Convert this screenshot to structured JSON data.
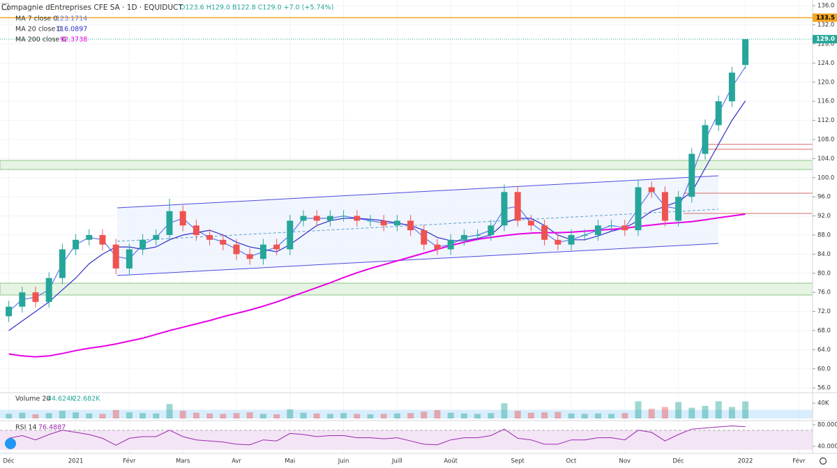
{
  "chart_data": {
    "type": "candlestick",
    "title": "Compagnie dEntreprises CFE SA · 1D · EQUIDUCT",
    "ohlc_label": "O123.6 H129.0 B122.8 C129.0 +7.0 (+5.74%)",
    "up_color": "#26a69a",
    "down_color": "#ef5350",
    "categories": [
      "Déc",
      null,
      null,
      null,
      null,
      "2021",
      null,
      null,
      null,
      "Févr",
      null,
      null,
      null,
      "Mars",
      null,
      null,
      null,
      "Avr",
      null,
      null,
      null,
      "Mai",
      null,
      null,
      null,
      "Juin",
      null,
      null,
      null,
      "Juill",
      null,
      null,
      null,
      "Août",
      null,
      null,
      null,
      null,
      "Sept",
      null,
      null,
      null,
      "Oct",
      null,
      null,
      null,
      "Nov",
      null,
      null,
      null,
      "Déc",
      null,
      null,
      null,
      null,
      "2022",
      null,
      null,
      null,
      "Févr"
    ],
    "open": [
      71,
      73,
      76,
      74,
      79,
      85,
      87,
      88,
      86,
      81,
      85,
      87,
      88,
      93,
      90,
      88,
      87,
      86,
      84,
      83,
      86,
      85,
      91,
      92,
      91,
      92,
      92,
      91,
      91,
      90,
      91,
      89,
      86,
      85,
      87,
      88,
      88,
      90,
      97,
      91,
      90,
      87,
      86,
      88,
      88,
      90,
      90,
      89,
      98,
      97,
      91,
      96,
      105,
      111,
      116,
      123.6,
      null,
      null,
      null,
      null
    ],
    "high": [
      74.2,
      77.2,
      77.2,
      80.2,
      86.2,
      88.2,
      89.2,
      89.2,
      87.2,
      86.2,
      88.2,
      89.2,
      95.6,
      94.2,
      91.2,
      89.2,
      88.2,
      87.2,
      85.2,
      87.2,
      87.2,
      92.2,
      93.2,
      93.2,
      93.2,
      93.2,
      93.2,
      92.2,
      92.2,
      92.2,
      92.2,
      90.2,
      87.2,
      88.2,
      89.2,
      89.2,
      91.2,
      98.6,
      98.2,
      92.2,
      91.2,
      88.2,
      89.2,
      89.2,
      91.2,
      91.2,
      91.2,
      99.6,
      99.2,
      98.2,
      97.2,
      106.2,
      112.2,
      117.2,
      123.2,
      129,
      null,
      null,
      null,
      null
    ],
    "low": [
      69.8,
      71.8,
      72.8,
      72.8,
      77.8,
      83.8,
      85.8,
      84.8,
      79.8,
      79.8,
      83.8,
      85.8,
      86.8,
      88.8,
      86.8,
      85.8,
      84.8,
      82.8,
      81.8,
      81.8,
      83.8,
      83.8,
      89.8,
      89.8,
      89.8,
      90.8,
      89.8,
      89.8,
      88.8,
      88.8,
      87.8,
      84.8,
      83.8,
      83.8,
      85.8,
      86.8,
      86.8,
      88.8,
      89.8,
      88.8,
      85.8,
      84.8,
      84.8,
      86.8,
      86.8,
      88.8,
      87.8,
      87.8,
      95.8,
      89.8,
      89.8,
      94.8,
      103.8,
      109.8,
      114.8,
      122.8,
      null,
      null,
      null,
      null
    ],
    "close": [
      73,
      76,
      74,
      79,
      85,
      87,
      88,
      86,
      81,
      85,
      87,
      88,
      93,
      90,
      88,
      87,
      86,
      84,
      83,
      86,
      85,
      91,
      92,
      91,
      92,
      92,
      91,
      91,
      90,
      91,
      89,
      86,
      85,
      87,
      88,
      88,
      90,
      97,
      91,
      90,
      87,
      86,
      88,
      88,
      90,
      90,
      89,
      98,
      97,
      91,
      96,
      105,
      111,
      116,
      122,
      129,
      null,
      null,
      null,
      null
    ],
    "ylim": [
      55,
      137.2
    ],
    "yticks": [
      {
        "value": 56,
        "label": "56.0"
      },
      {
        "value": 60,
        "label": "60.0"
      },
      {
        "value": 64,
        "label": "64.0"
      },
      {
        "value": 68,
        "label": "68.0"
      },
      {
        "value": 72,
        "label": "72.0"
      },
      {
        "value": 76,
        "label": "76.0"
      },
      {
        "value": 80,
        "label": "80.0"
      },
      {
        "value": 84,
        "label": "84.0"
      },
      {
        "value": 88,
        "label": "88.0"
      },
      {
        "value": 92,
        "label": "92.0"
      },
      {
        "value": 96,
        "label": "96.0"
      },
      {
        "value": 100,
        "label": "100.0"
      },
      {
        "value": 104,
        "label": "104.0"
      },
      {
        "value": 108,
        "label": "108.0"
      },
      {
        "value": 112,
        "label": "112.0"
      },
      {
        "value": 116,
        "label": "116.0"
      },
      {
        "value": 120,
        "label": "120.0"
      },
      {
        "value": 124,
        "label": "124.0"
      },
      {
        "value": 128,
        "label": "128.0"
      },
      {
        "value": 132,
        "label": "132.0"
      },
      {
        "value": 136,
        "label": "136.0"
      }
    ],
    "grid": true,
    "alert_line": {
      "value": 133.5,
      "label": "133.5",
      "color": "#f5a623"
    },
    "last_price": {
      "value": 129,
      "label": "129.0",
      "color": "#26a69a"
    },
    "moving_averages": [
      {
        "name": "MA 7 close 0",
        "color": "#5a78f0",
        "values": [
          72,
          74.5,
          75,
          76.5,
          82,
          86,
          87.5,
          87,
          83.5,
          83,
          86,
          87.5,
          90.5,
          91.5,
          89,
          87.5,
          86.5,
          85,
          83.5,
          84.5,
          85.5,
          88,
          91.5,
          91.5,
          91.5,
          92,
          91.5,
          91,
          90.5,
          90.5,
          90,
          87.5,
          85.5,
          86,
          87.5,
          88,
          89,
          93.5,
          94,
          90.5,
          88.5,
          86.5,
          87,
          88,
          89,
          90,
          89.5,
          93.5,
          97.5,
          94,
          93.5,
          100.5,
          108,
          113.5,
          119,
          123.1714,
          null,
          null,
          null,
          null
        ]
      },
      {
        "name": "MA 20 close 0",
        "color": "#2f2fc8",
        "values": [
          68,
          70,
          72,
          74,
          76.5,
          79,
          82,
          84,
          85.5,
          85.5,
          85,
          85.5,
          87,
          88,
          88.5,
          89,
          88,
          86.5,
          85.5,
          85,
          84.5,
          86,
          88,
          90,
          91,
          91.5,
          91.5,
          91.3,
          91,
          90.5,
          90,
          89,
          87.5,
          86.8,
          86.8,
          87.3,
          88,
          90.5,
          91.5,
          91.5,
          90,
          88,
          87,
          87,
          87.8,
          88.8,
          89.5,
          91,
          93,
          94,
          95,
          97,
          102,
          107,
          112,
          116.0897,
          null,
          null,
          null,
          null
        ]
      },
      {
        "name": "MA 200 close 0",
        "color": "#e600e6",
        "values": [
          63.1,
          62.7,
          62.5,
          62.7,
          63.2,
          63.8,
          64.3,
          64.7,
          65.2,
          65.8,
          66.4,
          67.2,
          68,
          68.7,
          69.4,
          70.1,
          70.9,
          71.6,
          72.3,
          73.1,
          74,
          75,
          76,
          77,
          78,
          79.1,
          80.1,
          81,
          81.8,
          82.6,
          83.4,
          84.2,
          85,
          85.8,
          86.5,
          87.1,
          87.5,
          87.9,
          88.2,
          88.4,
          88.5,
          88.5,
          88.6,
          88.8,
          89,
          89.2,
          89.4,
          89.8,
          90.1,
          90.4,
          90.6,
          90.8,
          91.2,
          91.6,
          92,
          92.3738,
          null,
          null,
          null,
          null
        ]
      }
    ],
    "volume": {
      "name": "Volume 20",
      "values": [
        12000,
        15000,
        11000,
        14000,
        20000,
        16000,
        13000,
        12000,
        22000,
        16000,
        14000,
        13000,
        38000,
        20000,
        15000,
        13000,
        12000,
        14000,
        16000,
        12000,
        11000,
        24000,
        15000,
        13000,
        12000,
        14000,
        12000,
        11000,
        12000,
        13000,
        14000,
        18000,
        22000,
        15000,
        13000,
        12000,
        14000,
        40000,
        20000,
        15000,
        16000,
        17000,
        13000,
        12000,
        13000,
        12000,
        14000,
        45000,
        25000,
        30000,
        43000,
        28000,
        33000,
        45000,
        30000,
        44624,
        null,
        null,
        null,
        null
      ],
      "last": {
        "value": 44624,
        "label": "44.624K"
      },
      "ma": {
        "value": 22682,
        "label": "22.682K",
        "color": "#90caf9"
      },
      "ylim": [
        0,
        62000
      ],
      "yticks": [
        {
          "value": 40000,
          "label": "40K"
        }
      ]
    },
    "rsi": {
      "name": "RSI 14",
      "color": "#9c27b0",
      "values": [
        55,
        60,
        52,
        62,
        70,
        66,
        62,
        55,
        42,
        55,
        58,
        58,
        70,
        58,
        52,
        50,
        48,
        44,
        43,
        52,
        50,
        64,
        62,
        58,
        60,
        60,
        56,
        56,
        54,
        56,
        50,
        44,
        43,
        52,
        56,
        56,
        60,
        72,
        55,
        52,
        44,
        44,
        52,
        52,
        56,
        56,
        52,
        70,
        66,
        50,
        62,
        72,
        74,
        76,
        78,
        76.4887,
        null,
        null,
        null,
        null
      ],
      "ylim": [
        33.5,
        86.5
      ],
      "yticks": [
        {
          "value": 80,
          "label": "80.0000"
        },
        {
          "value": 40,
          "label": "40.0000"
        }
      ]
    }
  }
}
